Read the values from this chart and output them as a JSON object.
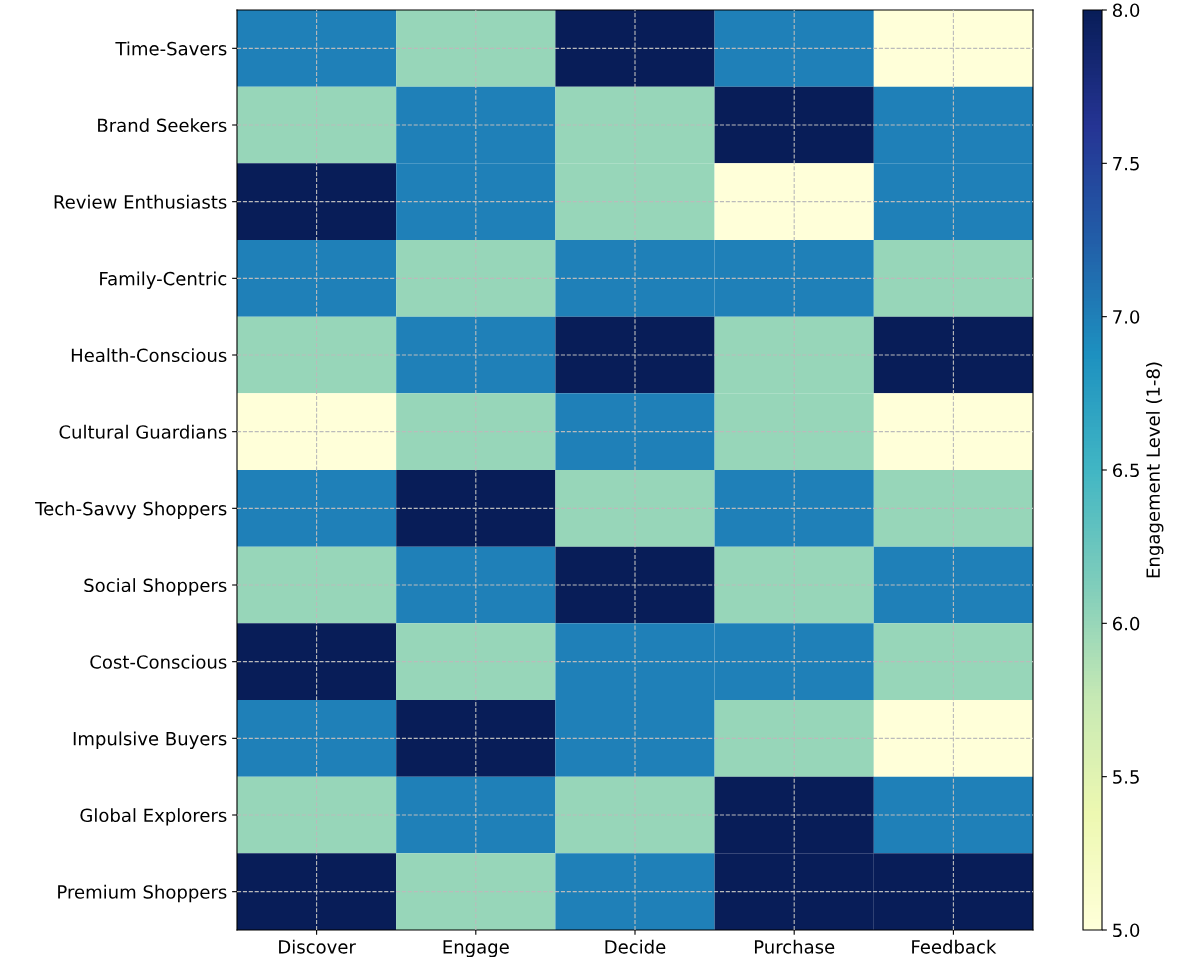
{
  "chart_data": {
    "type": "heatmap",
    "clabel": "Engagement Level (1-8)",
    "categories": [
      "Discover",
      "Engage",
      "Decide",
      "Purchase",
      "Feedback"
    ],
    "y_categories": [
      "Time-Savers",
      "Brand Seekers",
      "Review Enthusiasts",
      "Family-Centric",
      "Health-Conscious",
      "Cultural Guardians",
      "Tech-Savvy Shoppers",
      "Social Shoppers",
      "Cost-Conscious",
      "Impulsive Buyers",
      "Global Explorers",
      "Premium Shoppers"
    ],
    "cells": [
      [
        7,
        6,
        8,
        7,
        5
      ],
      [
        6,
        7,
        6,
        8,
        7
      ],
      [
        8,
        7,
        6,
        5,
        7
      ],
      [
        7,
        6,
        7,
        7,
        6
      ],
      [
        6,
        7,
        8,
        6,
        8
      ],
      [
        5,
        6,
        7,
        6,
        5
      ],
      [
        7,
        8,
        6,
        7,
        6
      ],
      [
        6,
        7,
        8,
        6,
        7
      ],
      [
        8,
        6,
        7,
        7,
        6
      ],
      [
        7,
        8,
        7,
        6,
        5
      ],
      [
        6,
        7,
        6,
        8,
        7
      ],
      [
        8,
        6,
        7,
        8,
        8
      ]
    ],
    "clim": [
      5,
      8
    ],
    "cticks": [
      {
        "value": 5,
        "label": "5.0"
      },
      {
        "value": 5.5,
        "label": "5.5"
      },
      {
        "value": 6,
        "label": "6.0"
      },
      {
        "value": 6.5,
        "label": "6.5"
      },
      {
        "value": 7,
        "label": "7.0"
      },
      {
        "value": 7.5,
        "label": "7.5"
      },
      {
        "value": 8,
        "label": "8.0"
      }
    ],
    "grid": true
  }
}
